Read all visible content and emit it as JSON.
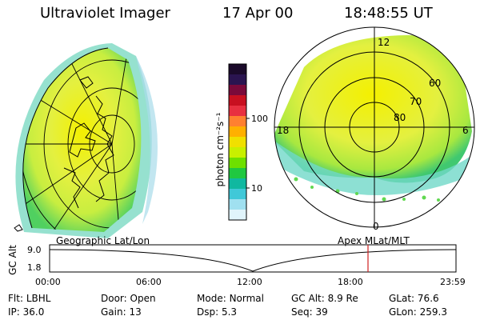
{
  "header": {
    "instrument": "Ultraviolet Imager",
    "date": "17 Apr 00",
    "time": "18:48:55 UT"
  },
  "colorbar": {
    "unit_label": "photon cm⁻²s⁻¹",
    "ticks": [
      "100",
      "10"
    ],
    "colors": [
      "#1a0a2a",
      "#2a1450",
      "#7a0a3a",
      "#c81020",
      "#e83040",
      "#ff8030",
      "#ffb000",
      "#f0e000",
      "#c8f000",
      "#6ee000",
      "#20c840",
      "#10b8a0",
      "#40c8d8",
      "#a0e0f0",
      "#e0f4fb"
    ]
  },
  "polar": {
    "mlt_labels": {
      "top": "12",
      "left": "18",
      "right": "6",
      "bottom": "0"
    },
    "lat_labels": [
      "60",
      "70",
      "80"
    ]
  },
  "projections": {
    "left": "Geographic Lat/Lon",
    "right": "Apex  MLat/MLT"
  },
  "timeline": {
    "axis_label": "GC Alt",
    "y_ticks": [
      "9.0",
      "1.8"
    ],
    "x_ticks": [
      "00:00",
      "06:00",
      "12:00",
      "18:00",
      "23:59"
    ],
    "marker_time": "18:48"
  },
  "info": {
    "row1": [
      {
        "label": "Flt:",
        "value": "LBHL"
      },
      {
        "label": "Door:",
        "value": "Open"
      },
      {
        "label": "Mode:",
        "value": "Normal"
      },
      {
        "label": "GC Alt:",
        "value": "8.9 Re"
      },
      {
        "label": "GLat:",
        "value": "76.6"
      }
    ],
    "row2": [
      {
        "label": "IP:",
        "value": "36.0"
      },
      {
        "label": "Gain:",
        "value": "13"
      },
      {
        "label": "Dsp:",
        "value": "5.3"
      },
      {
        "label": "Seq:",
        "value": "39"
      },
      {
        "label": "GLon:",
        "value": "259.3"
      }
    ]
  }
}
